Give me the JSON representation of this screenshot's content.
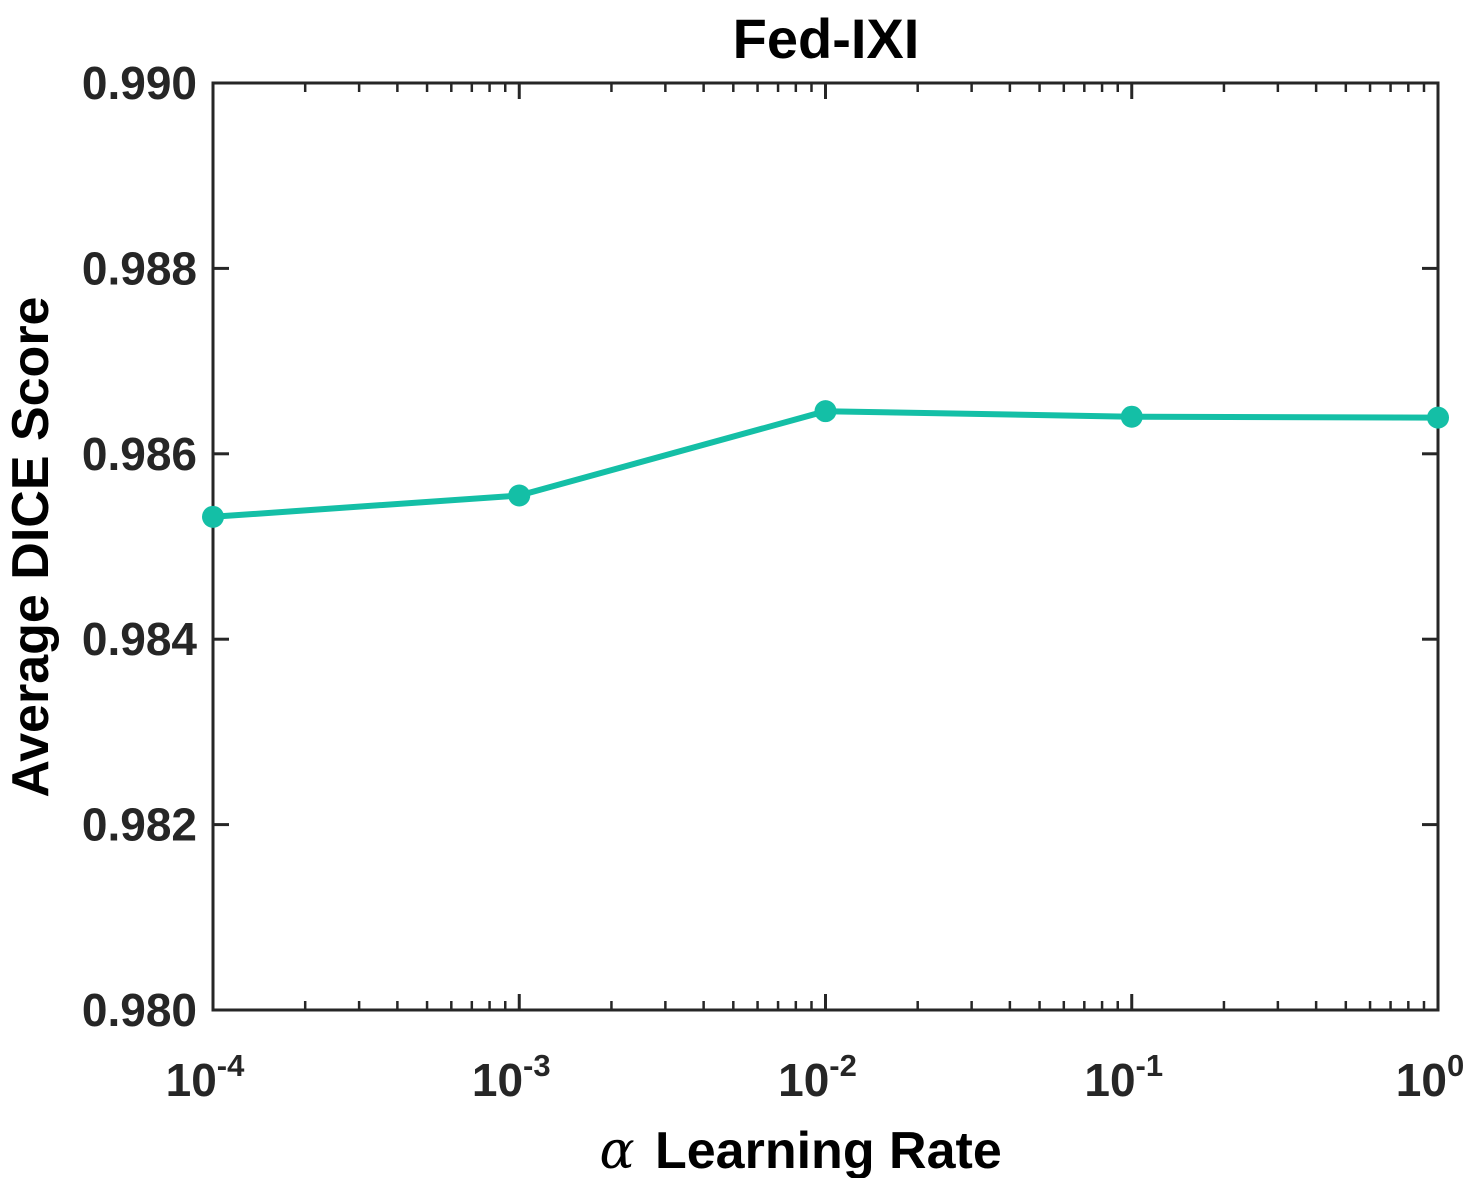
{
  "chart_data": {
    "type": "line",
    "title": "Fed-IXI",
    "xlabel_symbol": "α",
    "xlabel": "Learning Rate",
    "ylabel": "Average DICE Score",
    "xscale": "log",
    "xlim": [
      0.0001,
      1
    ],
    "ylim": [
      0.98,
      0.99
    ],
    "yticks": [
      "0.980",
      "0.982",
      "0.984",
      "0.986",
      "0.988",
      "0.990"
    ],
    "xticks": [
      {
        "base": "10",
        "exp": "-4"
      },
      {
        "base": "10",
        "exp": "-3"
      },
      {
        "base": "10",
        "exp": "-2"
      },
      {
        "base": "10",
        "exp": "-1"
      },
      {
        "base": "10",
        "exp": "0"
      }
    ],
    "grid": false,
    "series": [
      {
        "color": "#14bfa6",
        "x": [
          0.0001,
          0.001,
          0.01,
          0.1,
          1
        ],
        "y": [
          0.98532,
          0.98555,
          0.98646,
          0.9864,
          0.98639
        ]
      }
    ]
  }
}
